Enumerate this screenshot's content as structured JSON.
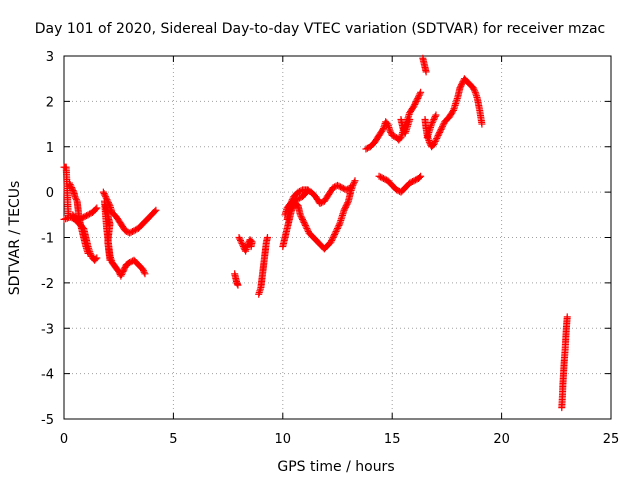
{
  "chart_data": {
    "type": "scatter",
    "title": "Day 101 of 2020, Sidereal Day-to-day VTEC variation (SDTVAR) for receiver mzac",
    "xlabel": "GPS time / hours",
    "ylabel": "SDTVAR / TECUs",
    "xlim": [
      0,
      25
    ],
    "ylim": [
      -5,
      3
    ],
    "xticks": [
      0,
      5,
      10,
      15,
      20,
      25
    ],
    "yticks": [
      -5,
      -4,
      -3,
      -2,
      -1,
      0,
      1,
      2,
      3
    ],
    "grid": true,
    "marker": "plus",
    "color": "#ff0000",
    "series": [
      {
        "name": "s1",
        "points": [
          [
            0.0,
            0.55
          ],
          [
            0.1,
            0.55
          ],
          [
            0.2,
            -0.55
          ]
        ]
      },
      {
        "name": "s2",
        "points": [
          [
            0.0,
            -0.6
          ],
          [
            0.3,
            -0.55
          ],
          [
            0.5,
            -0.6
          ],
          [
            0.7,
            -0.7
          ],
          [
            0.9,
            -0.8
          ],
          [
            1.0,
            -1.0
          ],
          [
            1.1,
            -1.2
          ],
          [
            1.2,
            -1.35
          ],
          [
            1.3,
            -1.45
          ],
          [
            1.4,
            -1.5
          ],
          [
            1.5,
            -1.45
          ]
        ]
      },
      {
        "name": "s3",
        "points": [
          [
            0.25,
            0.2
          ],
          [
            0.35,
            0.1
          ],
          [
            0.45,
            0.0
          ],
          [
            0.5,
            -0.1
          ],
          [
            0.6,
            -0.2
          ],
          [
            0.65,
            -0.4
          ],
          [
            0.7,
            -0.6
          ],
          [
            0.8,
            -0.8
          ],
          [
            0.9,
            -1.0
          ],
          [
            1.0,
            -1.2
          ],
          [
            1.1,
            -1.35
          ]
        ]
      },
      {
        "name": "s4",
        "points": [
          [
            0.4,
            -0.5
          ],
          [
            0.5,
            -0.55
          ],
          [
            0.7,
            -0.6
          ],
          [
            0.9,
            -0.55
          ],
          [
            1.1,
            -0.5
          ],
          [
            1.3,
            -0.45
          ],
          [
            1.5,
            -0.35
          ]
        ]
      },
      {
        "name": "s5",
        "points": [
          [
            1.8,
            0.0
          ],
          [
            1.9,
            -0.1
          ],
          [
            2.0,
            -0.2
          ],
          [
            2.1,
            -0.3
          ],
          [
            2.2,
            -0.45
          ],
          [
            2.4,
            -0.55
          ],
          [
            2.6,
            -0.7
          ],
          [
            2.8,
            -0.85
          ],
          [
            3.0,
            -0.9
          ],
          [
            3.2,
            -0.85
          ],
          [
            3.4,
            -0.8
          ],
          [
            3.6,
            -0.7
          ],
          [
            3.8,
            -0.6
          ],
          [
            4.0,
            -0.5
          ],
          [
            4.2,
            -0.4
          ]
        ]
      },
      {
        "name": "s6",
        "points": [
          [
            1.85,
            -0.2
          ],
          [
            1.9,
            -0.5
          ],
          [
            1.95,
            -0.8
          ],
          [
            2.0,
            -1.0
          ],
          [
            2.05,
            -1.2
          ],
          [
            2.1,
            -1.4
          ],
          [
            2.2,
            -1.55
          ],
          [
            2.35,
            -1.65
          ],
          [
            2.5,
            -1.75
          ],
          [
            2.6,
            -1.85
          ],
          [
            2.7,
            -1.75
          ],
          [
            2.85,
            -1.6
          ],
          [
            3.0,
            -1.55
          ],
          [
            3.2,
            -1.5
          ],
          [
            3.4,
            -1.6
          ],
          [
            3.6,
            -1.7
          ],
          [
            3.7,
            -1.8
          ]
        ]
      },
      {
        "name": "s7",
        "points": [
          [
            1.9,
            -0.3
          ],
          [
            2.0,
            -0.5
          ],
          [
            2.1,
            -0.7
          ],
          [
            2.05,
            -0.9
          ],
          [
            2.0,
            -1.1
          ],
          [
            2.05,
            -1.3
          ],
          [
            2.1,
            -1.5
          ]
        ]
      },
      {
        "name": "s8",
        "points": [
          [
            7.8,
            -1.8
          ],
          [
            7.85,
            -1.9
          ],
          [
            7.9,
            -2.0
          ],
          [
            7.95,
            -2.05
          ]
        ]
      },
      {
        "name": "s9",
        "points": [
          [
            8.0,
            -1.0
          ],
          [
            8.1,
            -1.1
          ],
          [
            8.2,
            -1.2
          ],
          [
            8.3,
            -1.3
          ],
          [
            8.4,
            -1.15
          ],
          [
            8.5,
            -1.05
          ],
          [
            8.6,
            -1.1
          ],
          [
            8.55,
            -1.2
          ]
        ]
      },
      {
        "name": "s10",
        "points": [
          [
            8.9,
            -2.25
          ],
          [
            9.0,
            -2.1
          ],
          [
            9.05,
            -1.9
          ],
          [
            9.1,
            -1.7
          ],
          [
            9.15,
            -1.5
          ],
          [
            9.2,
            -1.3
          ],
          [
            9.25,
            -1.1
          ],
          [
            9.3,
            -1.0
          ]
        ]
      },
      {
        "name": "s11",
        "points": [
          [
            10.0,
            -1.2
          ],
          [
            10.1,
            -1.0
          ],
          [
            10.2,
            -0.8
          ],
          [
            10.3,
            -0.6
          ],
          [
            10.4,
            -0.4
          ],
          [
            10.5,
            -0.3
          ],
          [
            10.6,
            -0.25
          ],
          [
            10.7,
            -0.3
          ],
          [
            10.8,
            -0.5
          ],
          [
            10.9,
            -0.6
          ],
          [
            11.0,
            -0.7
          ],
          [
            11.1,
            -0.8
          ],
          [
            11.2,
            -0.9
          ],
          [
            11.3,
            -0.95
          ],
          [
            11.4,
            -1.0
          ],
          [
            11.5,
            -1.05
          ],
          [
            11.6,
            -1.1
          ],
          [
            11.7,
            -1.15
          ],
          [
            11.8,
            -1.2
          ],
          [
            11.9,
            -1.25
          ],
          [
            12.0,
            -1.2
          ],
          [
            12.2,
            -1.1
          ],
          [
            12.4,
            -0.9
          ],
          [
            12.6,
            -0.7
          ],
          [
            12.8,
            -0.4
          ],
          [
            13.0,
            -0.2
          ],
          [
            13.1,
            0.0
          ],
          [
            13.2,
            0.15
          ],
          [
            13.3,
            0.25
          ]
        ]
      },
      {
        "name": "s12",
        "points": [
          [
            10.2,
            -0.6
          ],
          [
            10.3,
            -0.4
          ],
          [
            10.4,
            -0.2
          ],
          [
            10.5,
            -0.1
          ],
          [
            10.7,
            0.0
          ],
          [
            10.9,
            0.05
          ],
          [
            11.1,
            0.05
          ],
          [
            11.3,
            0.0
          ],
          [
            11.5,
            -0.1
          ],
          [
            11.7,
            -0.25
          ],
          [
            11.9,
            -0.2
          ],
          [
            12.1,
            -0.05
          ],
          [
            12.3,
            0.1
          ],
          [
            12.5,
            0.15
          ],
          [
            12.7,
            0.1
          ],
          [
            12.9,
            0.05
          ],
          [
            13.1,
            0.1
          ]
        ]
      },
      {
        "name": "s13",
        "points": [
          [
            10.1,
            -0.5
          ],
          [
            10.2,
            -0.35
          ],
          [
            10.35,
            -0.25
          ],
          [
            10.5,
            -0.2
          ],
          [
            10.7,
            -0.15
          ],
          [
            10.9,
            -0.1
          ],
          [
            11.0,
            -0.05
          ],
          [
            11.15,
            0.05
          ]
        ]
      },
      {
        "name": "s14",
        "points": [
          [
            13.8,
            0.95
          ],
          [
            14.0,
            1.0
          ],
          [
            14.2,
            1.1
          ],
          [
            14.4,
            1.25
          ],
          [
            14.6,
            1.4
          ],
          [
            14.7,
            1.55
          ],
          [
            14.8,
            1.5
          ],
          [
            14.9,
            1.35
          ],
          [
            15.0,
            1.25
          ],
          [
            15.2,
            1.2
          ],
          [
            15.3,
            1.15
          ],
          [
            15.4,
            1.2
          ],
          [
            15.5,
            1.35
          ],
          [
            15.6,
            1.5
          ],
          [
            15.7,
            1.6
          ],
          [
            15.8,
            1.75
          ],
          [
            16.0,
            1.9
          ],
          [
            16.2,
            2.1
          ],
          [
            16.3,
            2.2
          ]
        ]
      },
      {
        "name": "s15",
        "points": [
          [
            14.4,
            0.35
          ],
          [
            14.6,
            0.3
          ],
          [
            14.8,
            0.25
          ],
          [
            15.0,
            0.15
          ],
          [
            15.2,
            0.05
          ],
          [
            15.4,
            0.0
          ],
          [
            15.6,
            0.1
          ],
          [
            15.8,
            0.2
          ],
          [
            16.0,
            0.25
          ],
          [
            16.2,
            0.3
          ],
          [
            16.3,
            0.35
          ]
        ]
      },
      {
        "name": "s16",
        "points": [
          [
            15.4,
            1.6
          ],
          [
            15.5,
            1.4
          ],
          [
            15.6,
            1.3
          ],
          [
            15.7,
            1.45
          ],
          [
            15.8,
            1.6
          ]
        ]
      },
      {
        "name": "s17",
        "points": [
          [
            16.4,
            2.95
          ],
          [
            16.45,
            2.85
          ],
          [
            16.5,
            2.75
          ],
          [
            16.55,
            2.65
          ]
        ]
      },
      {
        "name": "s18",
        "points": [
          [
            16.5,
            1.6
          ],
          [
            16.55,
            1.4
          ],
          [
            16.6,
            1.25
          ],
          [
            16.7,
            1.1
          ],
          [
            16.8,
            1.0
          ],
          [
            16.9,
            1.05
          ],
          [
            17.0,
            1.15
          ],
          [
            17.2,
            1.35
          ],
          [
            17.4,
            1.55
          ],
          [
            17.6,
            1.65
          ],
          [
            17.8,
            1.8
          ],
          [
            18.0,
            2.1
          ],
          [
            18.1,
            2.3
          ],
          [
            18.3,
            2.5
          ],
          [
            18.5,
            2.4
          ],
          [
            18.7,
            2.3
          ],
          [
            18.8,
            2.2
          ],
          [
            18.9,
            2.05
          ],
          [
            19.0,
            1.8
          ],
          [
            19.1,
            1.5
          ]
        ]
      },
      {
        "name": "s19",
        "points": [
          [
            16.6,
            1.2
          ],
          [
            16.7,
            1.35
          ],
          [
            16.8,
            1.5
          ],
          [
            16.9,
            1.6
          ],
          [
            17.0,
            1.7
          ]
        ]
      },
      {
        "name": "s20",
        "points": [
          [
            22.75,
            -4.75
          ],
          [
            22.78,
            -4.5
          ],
          [
            22.8,
            -4.25
          ],
          [
            22.83,
            -4.0
          ],
          [
            22.86,
            -3.75
          ],
          [
            22.9,
            -3.5
          ],
          [
            22.93,
            -3.25
          ],
          [
            22.96,
            -3.0
          ],
          [
            23.0,
            -2.75
          ]
        ]
      }
    ]
  }
}
